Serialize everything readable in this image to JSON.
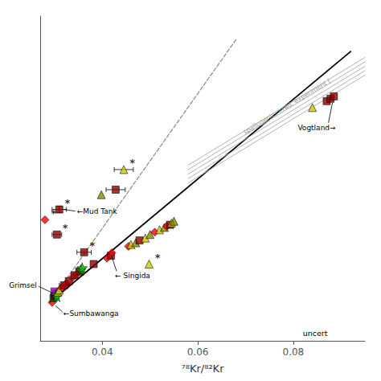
{
  "chart_data": {
    "type": "scatter",
    "xlabel": "⁷⁸Kr/⁸²Kr",
    "xlim": [
      0.027,
      0.095
    ],
    "ylim": [
      -0.05,
      1.05
    ],
    "xticks": [
      0.04,
      0.06,
      0.08
    ],
    "yticks": [],
    "tick_labels": "x",
    "grid": false,
    "edge_color": "black",
    "lines": [
      {
        "x": [
          0.029,
          0.092
        ],
        "y": [
          0.08,
          0.93
        ],
        "color": "black",
        "line_style": "solid"
      },
      {
        "x": [
          0.029,
          0.068
        ],
        "y": [
          0.08,
          0.97
        ],
        "color": "#888888",
        "line_style": "dashed"
      },
      {
        "x": [
          0.058,
          0.095
        ],
        "y": [
          0.545,
          0.91
        ],
        "color": "#aaaaaa",
        "line_style": "solid"
      },
      {
        "x": [
          0.058,
          0.095
        ],
        "y": [
          0.53,
          0.895
        ],
        "color": "#aaaaaa",
        "line_style": "solid"
      },
      {
        "x": [
          0.058,
          0.095
        ],
        "y": [
          0.515,
          0.88
        ],
        "color": "#aaaaaa",
        "line_style": "solid"
      },
      {
        "x": [
          0.058,
          0.095
        ],
        "y": [
          0.5,
          0.865
        ],
        "color": "#aaaaaa",
        "line_style": "solid"
      },
      {
        "x": [
          0.058,
          0.095
        ],
        "y": [
          0.485,
          0.85
        ],
        "color": "#aaaaaa",
        "line_style": "solid"
      }
    ],
    "points": [
      {
        "x": 0.0295,
        "y": 0.08,
        "marker": "diamond",
        "color": "#FF0000"
      },
      {
        "x": 0.0298,
        "y": 0.095,
        "marker": "square",
        "color": "#006400"
      },
      {
        "x": 0.03,
        "y": 0.103,
        "marker": "square",
        "color": "#8B0000"
      },
      {
        "x": 0.0302,
        "y": 0.11,
        "marker": "square",
        "color": "blue"
      },
      {
        "x": 0.03,
        "y": 0.117,
        "marker": "square",
        "color": "#cc00cc"
      },
      {
        "x": 0.0303,
        "y": 0.108,
        "marker": "star",
        "color": "#00aa00"
      },
      {
        "x": 0.0305,
        "y": 0.1,
        "marker": "star",
        "color": "#00cc00"
      },
      {
        "x": 0.0307,
        "y": 0.115,
        "marker": "triangle",
        "color": "#cccc00"
      },
      {
        "x": 0.031,
        "y": 0.122,
        "marker": "triangle",
        "color": "#cccc00"
      },
      {
        "x": 0.0315,
        "y": 0.13,
        "marker": "diamond",
        "color": "#FF0000"
      },
      {
        "x": 0.032,
        "y": 0.138,
        "marker": "square",
        "color": "#8B0000",
        "xerr": 0.001
      },
      {
        "x": 0.0325,
        "y": 0.145,
        "marker": "diamond",
        "color": "#FF0000"
      },
      {
        "x": 0.033,
        "y": 0.152,
        "marker": "square",
        "color": "#8B0000"
      },
      {
        "x": 0.0338,
        "y": 0.165,
        "marker": "diamond",
        "color": "#FF0000"
      },
      {
        "x": 0.0342,
        "y": 0.172,
        "marker": "square",
        "color": "#8B0000"
      },
      {
        "x": 0.0348,
        "y": 0.178,
        "marker": "diamond",
        "color": "#FF0000"
      },
      {
        "x": 0.0352,
        "y": 0.185,
        "marker": "square",
        "color": "#8B0000"
      },
      {
        "x": 0.0355,
        "y": 0.19,
        "marker": "star",
        "color": "#00aa00"
      },
      {
        "x": 0.0358,
        "y": 0.197,
        "marker": "star",
        "color": "#00cc00"
      },
      {
        "x": 0.0362,
        "y": 0.25,
        "marker": "square",
        "color": "#8B0000",
        "xerr": 0.0015,
        "label": "*"
      },
      {
        "x": 0.0305,
        "y": 0.31,
        "marker": "square",
        "color": "#8B0000",
        "xerr": 0.001,
        "label": "*"
      },
      {
        "x": 0.028,
        "y": 0.36,
        "marker": "diamond",
        "color": "#FF0000",
        "label": "*"
      },
      {
        "x": 0.031,
        "y": 0.395,
        "marker": "square",
        "color": "#8B0000",
        "xerr": 0.0015,
        "yerr": 0.01,
        "label": "*"
      },
      {
        "x": 0.0382,
        "y": 0.21,
        "marker": "square",
        "color": "#8B0000"
      },
      {
        "x": 0.041,
        "y": 0.23,
        "marker": "diamond",
        "color": "#FF0000"
      },
      {
        "x": 0.0418,
        "y": 0.238,
        "marker": "square",
        "color": "#8B0000"
      },
      {
        "x": 0.0455,
        "y": 0.27,
        "marker": "diamond",
        "color": "#FF0000"
      },
      {
        "x": 0.046,
        "y": 0.276,
        "marker": "triangle",
        "color": "#cccc00"
      },
      {
        "x": 0.047,
        "y": 0.282,
        "marker": "triangle",
        "color": "#888800"
      },
      {
        "x": 0.0478,
        "y": 0.29,
        "marker": "square",
        "color": "#8B0000"
      },
      {
        "x": 0.049,
        "y": 0.298,
        "marker": "triangle",
        "color": "#cccc00"
      },
      {
        "x": 0.05,
        "y": 0.31,
        "marker": "triangle",
        "color": "#888800"
      },
      {
        "x": 0.051,
        "y": 0.318,
        "marker": "diamond",
        "color": "#FF0000"
      },
      {
        "x": 0.052,
        "y": 0.326,
        "marker": "triangle",
        "color": "#cccc00"
      },
      {
        "x": 0.053,
        "y": 0.334,
        "marker": "triangle",
        "color": "#888800"
      },
      {
        "x": 0.0535,
        "y": 0.338,
        "marker": "diamond",
        "color": "#FF0000"
      },
      {
        "x": 0.0542,
        "y": 0.343,
        "marker": "square",
        "color": "#8B0000"
      },
      {
        "x": 0.0545,
        "y": 0.349,
        "marker": "triangle",
        "color": "#cccc00"
      },
      {
        "x": 0.055,
        "y": 0.355,
        "marker": "triangle",
        "color": "#888800"
      },
      {
        "x": 0.042,
        "y": 0.248,
        "marker": "diamond",
        "color": "#FF0000"
      },
      {
        "x": 0.0498,
        "y": 0.21,
        "marker": "triangle",
        "color": "#cccc00",
        "label": "*"
      },
      {
        "x": 0.0398,
        "y": 0.445,
        "marker": "triangle",
        "color": "#888800"
      },
      {
        "x": 0.0428,
        "y": 0.462,
        "marker": "square",
        "color": "#8B0000",
        "xerr": 0.002
      },
      {
        "x": 0.0445,
        "y": 0.53,
        "marker": "triangle",
        "color": "#cccc00",
        "xerr": 0.002,
        "label": "*"
      },
      {
        "x": 0.084,
        "y": 0.74,
        "marker": "triangle",
        "color": "#cccc00"
      },
      {
        "x": 0.087,
        "y": 0.762,
        "marker": "square",
        "color": "#8B0000"
      },
      {
        "x": 0.0878,
        "y": 0.77,
        "marker": "square",
        "color": "#8B0000"
      },
      {
        "x": 0.0885,
        "y": 0.778,
        "marker": "square",
        "color": "#8B0000"
      }
    ],
    "annotations": [
      {
        "text": "spallogenic, irrad. experiment (",
        "x": 0.07,
        "y": 0.645,
        "color": "#999999"
      },
      {
        "text": "Vogtland→",
        "x": 0.0882,
        "y": 0.77
      },
      {
        "text": "←Mud Tank",
        "x": 0.031,
        "y": 0.395
      },
      {
        "text": "← Singida",
        "x": 0.042,
        "y": 0.248
      },
      {
        "text": "Grimsel",
        "x": 0.03,
        "y": 0.11
      },
      {
        "text": "←Sumbawanga",
        "x": 0.0295,
        "y": 0.08
      },
      {
        "text": "uncert",
        "x": 0.082,
        "y": -0.038
      }
    ]
  }
}
